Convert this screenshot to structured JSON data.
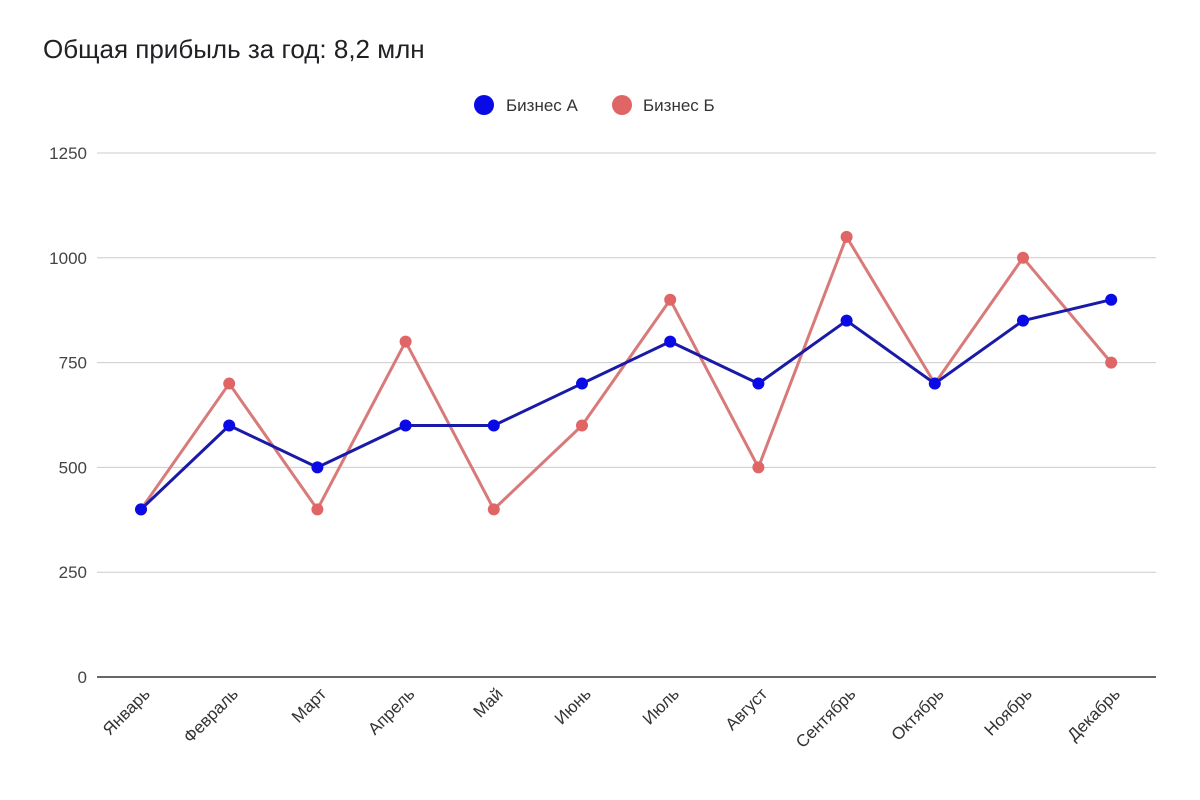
{
  "chart_data": {
    "type": "line",
    "title": "Общая прибыль за год: 8,2 млн",
    "categories": [
      "Январь",
      "Февраль",
      "Март",
      "Апрель",
      "Май",
      "Июнь",
      "Июль",
      "Август",
      "Сентябрь",
      "Октябрь",
      "Ноябрь",
      "Декабрь"
    ],
    "series": [
      {
        "name": "Бизнес А",
        "color": "#1a1aa8",
        "marker_color": "#0a0ae6",
        "values": [
          400,
          600,
          500,
          600,
          600,
          700,
          800,
          700,
          850,
          700,
          850,
          900
        ]
      },
      {
        "name": "Бизнес Б",
        "color": "#d97a7a",
        "marker_color": "#e06666",
        "values": [
          400,
          700,
          400,
          800,
          400,
          600,
          900,
          500,
          1050,
          700,
          1000,
          750
        ]
      }
    ],
    "yticks": [
      "0",
      "250",
      "500",
      "750",
      "1000",
      "1250"
    ],
    "ylim": [
      0,
      1250
    ],
    "legend_position": "top",
    "grid": true,
    "xlabel": "",
    "ylabel": ""
  }
}
